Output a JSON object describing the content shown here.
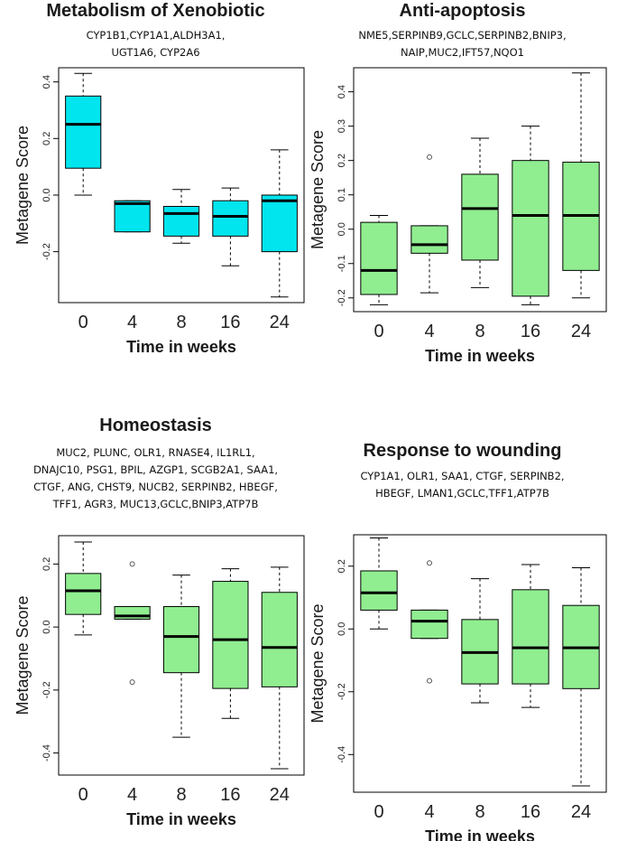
{
  "chart_data": [
    {
      "type": "box",
      "title": "Metabolism of Xenobiotic",
      "subtitle_lines": [
        "CYP1B1,CYP1A1,ALDH3A1,",
        "UGT1A6, CYP2A6"
      ],
      "xlabel": "Time in weeks",
      "ylabel": "Metagene Score",
      "categories": [
        "0",
        "4",
        "8",
        "16",
        "24"
      ],
      "yticks": [
        "-0.2",
        "0.0",
        "0.2",
        "0.4"
      ],
      "ylim": [
        -0.38,
        0.45
      ],
      "fill": "#00e5ee",
      "boxes": [
        {
          "whisker_low": 0.0,
          "q1": 0.095,
          "median": 0.25,
          "q3": 0.35,
          "whisker_high": 0.43,
          "outliers": []
        },
        {
          "whisker_low": -0.13,
          "q1": -0.13,
          "median": -0.03,
          "q3": -0.02,
          "whisker_high": -0.02,
          "outliers": []
        },
        {
          "whisker_low": -0.17,
          "q1": -0.145,
          "median": -0.065,
          "q3": -0.04,
          "whisker_high": 0.02,
          "outliers": []
        },
        {
          "whisker_low": -0.25,
          "q1": -0.145,
          "median": -0.075,
          "q3": -0.02,
          "whisker_high": 0.025,
          "outliers": []
        },
        {
          "whisker_low": -0.36,
          "q1": -0.2,
          "median": -0.02,
          "q3": 0.0,
          "whisker_high": 0.16,
          "outliers": []
        }
      ]
    },
    {
      "type": "box",
      "title": "Anti-apoptosis",
      "subtitle_lines": [
        "NME5,SERPINB9,GCLC,SERPINB2,BNIP3,",
        "NAIP,MUC2,IFT57,NQO1"
      ],
      "xlabel": "Time in weeks",
      "ylabel": "Metagene Score",
      "categories": [
        "0",
        "4",
        "8",
        "16",
        "24"
      ],
      "yticks": [
        "-0.2",
        "-0.1",
        "0.0",
        "0.1",
        "0.2",
        "0.3",
        "0.4"
      ],
      "ylim": [
        -0.24,
        0.47
      ],
      "fill": "#90ee90",
      "boxes": [
        {
          "whisker_low": -0.22,
          "q1": -0.19,
          "median": -0.12,
          "q3": 0.02,
          "whisker_high": 0.04,
          "outliers": []
        },
        {
          "whisker_low": -0.185,
          "q1": -0.07,
          "median": -0.045,
          "q3": 0.01,
          "whisker_high": 0.01,
          "outliers": [
            0.21
          ]
        },
        {
          "whisker_low": -0.17,
          "q1": -0.09,
          "median": 0.06,
          "q3": 0.16,
          "whisker_high": 0.265,
          "outliers": []
        },
        {
          "whisker_low": -0.22,
          "q1": -0.195,
          "median": 0.04,
          "q3": 0.2,
          "whisker_high": 0.3,
          "outliers": []
        },
        {
          "whisker_low": -0.2,
          "q1": -0.12,
          "median": 0.04,
          "q3": 0.195,
          "whisker_high": 0.455,
          "outliers": []
        }
      ]
    },
    {
      "type": "box",
      "title": "Homeostasis",
      "subtitle_lines": [
        "MUC2, PLUNC, OLR1, RNASE4, IL1RL1,",
        "DNAJC10, PSG1, BPIL, AZGP1, SCGB2A1, SAA1,",
        "CTGF, ANG, CHST9, NUCB2, SERPINB2, HBEGF,",
        "TFF1, AGR3, MUC13,GCLC,BNIP3,ATP7B"
      ],
      "xlabel": "Time in weeks",
      "ylabel": "Metagene Score",
      "categories": [
        "0",
        "4",
        "8",
        "16",
        "24"
      ],
      "yticks": [
        "-0.4",
        "-0.2",
        "0.0",
        "0.2"
      ],
      "ylim": [
        -0.47,
        0.29
      ],
      "fill": "#90ee90",
      "boxes": [
        {
          "whisker_low": -0.025,
          "q1": 0.04,
          "median": 0.115,
          "q3": 0.17,
          "whisker_high": 0.27,
          "outliers": []
        },
        {
          "whisker_low": 0.025,
          "q1": 0.025,
          "median": 0.035,
          "q3": 0.065,
          "whisker_high": 0.065,
          "outliers": [
            0.2,
            -0.175
          ]
        },
        {
          "whisker_low": -0.35,
          "q1": -0.145,
          "median": -0.03,
          "q3": 0.065,
          "whisker_high": 0.165,
          "outliers": []
        },
        {
          "whisker_low": -0.29,
          "q1": -0.195,
          "median": -0.04,
          "q3": 0.145,
          "whisker_high": 0.185,
          "outliers": []
        },
        {
          "whisker_low": -0.45,
          "q1": -0.19,
          "median": -0.065,
          "q3": 0.11,
          "whisker_high": 0.19,
          "outliers": []
        }
      ]
    },
    {
      "type": "box",
      "title": "Response to wounding",
      "subtitle_lines": [
        "CYP1A1, OLR1, SAA1, CTGF, SERPINB2,",
        "HBEGF, LMAN1,GCLC,TFF1,ATP7B"
      ],
      "xlabel": "Time in weeks",
      "ylabel": "Metagene Score",
      "categories": [
        "0",
        "4",
        "8",
        "16",
        "24"
      ],
      "yticks": [
        "-0.4",
        "-0.2",
        "0.0",
        "0.2"
      ],
      "ylim": [
        -0.52,
        0.3
      ],
      "fill": "#90ee90",
      "boxes": [
        {
          "whisker_low": 0.0,
          "q1": 0.06,
          "median": 0.115,
          "q3": 0.185,
          "whisker_high": 0.29,
          "outliers": []
        },
        {
          "whisker_low": -0.03,
          "q1": -0.03,
          "median": 0.025,
          "q3": 0.06,
          "whisker_high": 0.06,
          "outliers": [
            0.21,
            -0.165
          ]
        },
        {
          "whisker_low": -0.235,
          "q1": -0.175,
          "median": -0.075,
          "q3": 0.03,
          "whisker_high": 0.16,
          "outliers": []
        },
        {
          "whisker_low": -0.25,
          "q1": -0.175,
          "median": -0.06,
          "q3": 0.125,
          "whisker_high": 0.205,
          "outliers": []
        },
        {
          "whisker_low": -0.5,
          "q1": -0.19,
          "median": -0.06,
          "q3": 0.075,
          "whisker_high": 0.195,
          "outliers": []
        }
      ]
    }
  ]
}
